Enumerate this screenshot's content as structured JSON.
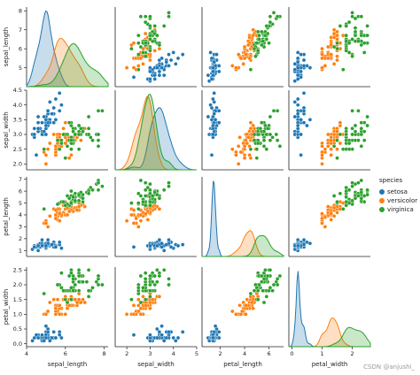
{
  "chart_data": {
    "type": "scatter",
    "variables": [
      "sepal_length",
      "sepal_width",
      "petal_length",
      "petal_width"
    ],
    "diagonal": "kde",
    "species": [
      {
        "name": "setosa",
        "color": "#1f77b4"
      },
      {
        "name": "versicolor",
        "color": "#ff7f0e"
      },
      {
        "name": "virginica",
        "color": "#2ca02c"
      }
    ],
    "legend": {
      "title": "species",
      "position": "right"
    },
    "axes": {
      "sepal_length": {
        "label": "sepal_length",
        "lim": [
          4.0,
          8.2
        ],
        "ticks": [
          4,
          6,
          8
        ]
      },
      "sepal_width": {
        "label": "sepal_width",
        "lim": [
          1.8,
          4.5
        ],
        "ticks": [
          2.0,
          2.5,
          3.0,
          3.5,
          4.0,
          4.5
        ],
        "xticks": [
          2,
          3,
          4,
          5
        ],
        "xlim": [
          1.5,
          5.0
        ]
      },
      "petal_length": {
        "label": "petal_length",
        "lim": [
          0.5,
          7.2
        ],
        "ticks": [
          1,
          2,
          3,
          4,
          5,
          6,
          7
        ],
        "xticks": [
          2,
          4,
          6
        ]
      },
      "petal_width": {
        "label": "petal_width",
        "lim": [
          -0.1,
          2.6
        ],
        "ticks": [
          0.0,
          0.5,
          1.0,
          1.5,
          2.0,
          2.5
        ],
        "xticks": [
          0,
          1,
          2
        ]
      }
    },
    "y_tick_labels": {
      "sepal_length": [
        "5",
        "6",
        "7",
        "8"
      ],
      "sepal_width": [
        "2.0",
        "2.5",
        "3.0",
        "3.5",
        "4.0",
        "4.5"
      ],
      "petal_length": [
        "1",
        "2",
        "3",
        "4",
        "5",
        "6",
        "7"
      ],
      "petal_width": [
        "0.0",
        "0.5",
        "1.0",
        "1.5",
        "2.0",
        "2.5"
      ]
    },
    "points": {
      "setosa": [
        [
          5.1,
          3.5,
          1.4,
          0.2
        ],
        [
          4.9,
          3.0,
          1.4,
          0.2
        ],
        [
          4.7,
          3.2,
          1.3,
          0.2
        ],
        [
          4.6,
          3.1,
          1.5,
          0.2
        ],
        [
          5.0,
          3.6,
          1.4,
          0.2
        ],
        [
          5.4,
          3.9,
          1.7,
          0.4
        ],
        [
          4.6,
          3.4,
          1.4,
          0.3
        ],
        [
          5.0,
          3.4,
          1.5,
          0.2
        ],
        [
          4.4,
          2.9,
          1.4,
          0.2
        ],
        [
          4.9,
          3.1,
          1.5,
          0.1
        ],
        [
          5.4,
          3.7,
          1.5,
          0.2
        ],
        [
          4.8,
          3.4,
          1.6,
          0.2
        ],
        [
          4.8,
          3.0,
          1.4,
          0.1
        ],
        [
          4.3,
          3.0,
          1.1,
          0.1
        ],
        [
          5.8,
          4.0,
          1.2,
          0.2
        ],
        [
          5.7,
          4.4,
          1.5,
          0.4
        ],
        [
          5.4,
          3.9,
          1.3,
          0.4
        ],
        [
          5.1,
          3.5,
          1.4,
          0.3
        ],
        [
          5.7,
          3.8,
          1.7,
          0.3
        ],
        [
          5.1,
          3.8,
          1.5,
          0.3
        ],
        [
          5.4,
          3.4,
          1.7,
          0.2
        ],
        [
          5.1,
          3.7,
          1.5,
          0.4
        ],
        [
          4.6,
          3.6,
          1.0,
          0.2
        ],
        [
          5.1,
          3.3,
          1.7,
          0.5
        ],
        [
          4.8,
          3.4,
          1.9,
          0.2
        ],
        [
          5.0,
          3.0,
          1.6,
          0.2
        ],
        [
          5.0,
          3.4,
          1.6,
          0.4
        ],
        [
          5.2,
          3.5,
          1.5,
          0.2
        ],
        [
          5.2,
          3.4,
          1.4,
          0.2
        ],
        [
          4.7,
          3.2,
          1.6,
          0.2
        ],
        [
          4.8,
          3.1,
          1.6,
          0.2
        ],
        [
          5.4,
          3.4,
          1.5,
          0.4
        ],
        [
          5.2,
          4.1,
          1.5,
          0.1
        ],
        [
          5.5,
          4.2,
          1.4,
          0.2
        ],
        [
          4.9,
          3.1,
          1.5,
          0.2
        ],
        [
          5.0,
          3.2,
          1.2,
          0.2
        ],
        [
          5.5,
          3.5,
          1.3,
          0.2
        ],
        [
          4.9,
          3.6,
          1.4,
          0.1
        ],
        [
          4.4,
          3.0,
          1.3,
          0.2
        ],
        [
          5.1,
          3.4,
          1.5,
          0.2
        ],
        [
          5.0,
          3.5,
          1.3,
          0.3
        ],
        [
          4.5,
          2.3,
          1.3,
          0.3
        ],
        [
          4.4,
          3.2,
          1.3,
          0.2
        ],
        [
          5.0,
          3.5,
          1.6,
          0.6
        ],
        [
          5.1,
          3.8,
          1.9,
          0.4
        ],
        [
          4.8,
          3.0,
          1.4,
          0.3
        ],
        [
          5.1,
          3.8,
          1.6,
          0.2
        ],
        [
          4.6,
          3.2,
          1.4,
          0.2
        ],
        [
          5.3,
          3.7,
          1.5,
          0.2
        ],
        [
          5.0,
          3.3,
          1.4,
          0.2
        ]
      ],
      "versicolor": [
        [
          7.0,
          3.2,
          4.7,
          1.4
        ],
        [
          6.4,
          3.2,
          4.5,
          1.5
        ],
        [
          6.9,
          3.1,
          4.9,
          1.5
        ],
        [
          5.5,
          2.3,
          4.0,
          1.3
        ],
        [
          6.5,
          2.8,
          4.6,
          1.5
        ],
        [
          5.7,
          2.8,
          4.5,
          1.3
        ],
        [
          6.3,
          3.3,
          4.7,
          1.6
        ],
        [
          4.9,
          2.4,
          3.3,
          1.0
        ],
        [
          6.6,
          2.9,
          4.6,
          1.3
        ],
        [
          5.2,
          2.7,
          3.9,
          1.4
        ],
        [
          5.0,
          2.0,
          3.5,
          1.0
        ],
        [
          5.9,
          3.0,
          4.2,
          1.5
        ],
        [
          6.0,
          2.2,
          4.0,
          1.0
        ],
        [
          6.1,
          2.9,
          4.7,
          1.4
        ],
        [
          5.6,
          2.9,
          3.6,
          1.3
        ],
        [
          6.7,
          3.1,
          4.4,
          1.4
        ],
        [
          5.6,
          3.0,
          4.5,
          1.5
        ],
        [
          5.8,
          2.7,
          4.1,
          1.0
        ],
        [
          6.2,
          2.2,
          4.5,
          1.5
        ],
        [
          5.6,
          2.5,
          3.9,
          1.1
        ],
        [
          5.9,
          3.2,
          4.8,
          1.8
        ],
        [
          6.1,
          2.8,
          4.0,
          1.3
        ],
        [
          6.3,
          2.5,
          4.9,
          1.5
        ],
        [
          6.1,
          2.8,
          4.7,
          1.2
        ],
        [
          6.4,
          2.9,
          4.3,
          1.3
        ],
        [
          6.6,
          3.0,
          4.4,
          1.4
        ],
        [
          6.8,
          2.8,
          4.8,
          1.4
        ],
        [
          6.7,
          3.0,
          5.0,
          1.7
        ],
        [
          6.0,
          2.9,
          4.5,
          1.5
        ],
        [
          5.7,
          2.6,
          3.5,
          1.0
        ],
        [
          5.5,
          2.4,
          3.8,
          1.1
        ],
        [
          5.5,
          2.4,
          3.7,
          1.0
        ],
        [
          5.8,
          2.7,
          3.9,
          1.2
        ],
        [
          6.0,
          2.7,
          5.1,
          1.6
        ],
        [
          5.4,
          3.0,
          4.5,
          1.5
        ],
        [
          6.0,
          3.4,
          4.5,
          1.6
        ],
        [
          6.7,
          3.1,
          4.7,
          1.5
        ],
        [
          6.3,
          2.3,
          4.4,
          1.3
        ],
        [
          5.6,
          3.0,
          4.1,
          1.3
        ],
        [
          5.5,
          2.5,
          4.0,
          1.3
        ],
        [
          5.5,
          2.6,
          4.4,
          1.2
        ],
        [
          6.1,
          3.0,
          4.6,
          1.4
        ],
        [
          5.8,
          2.6,
          4.0,
          1.2
        ],
        [
          5.0,
          2.3,
          3.3,
          1.0
        ],
        [
          5.6,
          2.7,
          4.2,
          1.3
        ],
        [
          5.7,
          3.0,
          4.2,
          1.2
        ],
        [
          5.7,
          2.9,
          4.2,
          1.3
        ],
        [
          6.2,
          2.9,
          4.3,
          1.3
        ],
        [
          5.1,
          2.5,
          3.0,
          1.1
        ],
        [
          5.7,
          2.8,
          4.1,
          1.3
        ]
      ],
      "virginica": [
        [
          6.3,
          3.3,
          6.0,
          2.5
        ],
        [
          5.8,
          2.7,
          5.1,
          1.9
        ],
        [
          7.1,
          3.0,
          5.9,
          2.1
        ],
        [
          6.3,
          2.9,
          5.6,
          1.8
        ],
        [
          6.5,
          3.0,
          5.8,
          2.2
        ],
        [
          7.6,
          3.0,
          6.6,
          2.1
        ],
        [
          4.9,
          2.5,
          4.5,
          1.7
        ],
        [
          7.3,
          2.9,
          6.3,
          1.8
        ],
        [
          6.7,
          2.5,
          5.8,
          1.8
        ],
        [
          7.2,
          3.6,
          6.1,
          2.5
        ],
        [
          6.5,
          3.2,
          5.1,
          2.0
        ],
        [
          6.4,
          2.7,
          5.3,
          1.9
        ],
        [
          6.8,
          3.0,
          5.5,
          2.1
        ],
        [
          5.7,
          2.5,
          5.0,
          2.0
        ],
        [
          5.8,
          2.8,
          5.1,
          2.4
        ],
        [
          6.4,
          3.2,
          5.3,
          2.3
        ],
        [
          6.5,
          3.0,
          5.5,
          1.8
        ],
        [
          7.7,
          3.8,
          6.7,
          2.2
        ],
        [
          7.7,
          2.6,
          6.9,
          2.3
        ],
        [
          6.0,
          2.2,
          5.0,
          1.5
        ],
        [
          6.9,
          3.2,
          5.7,
          2.3
        ],
        [
          5.6,
          2.8,
          4.9,
          2.0
        ],
        [
          7.7,
          2.8,
          6.7,
          2.0
        ],
        [
          6.3,
          2.7,
          4.9,
          1.8
        ],
        [
          6.7,
          3.3,
          5.7,
          2.1
        ],
        [
          7.2,
          3.2,
          6.0,
          1.8
        ],
        [
          6.2,
          2.8,
          4.8,
          1.8
        ],
        [
          6.1,
          3.0,
          4.9,
          1.8
        ],
        [
          6.4,
          2.8,
          5.6,
          2.1
        ],
        [
          7.2,
          3.0,
          5.8,
          1.6
        ],
        [
          7.4,
          2.8,
          6.1,
          1.9
        ],
        [
          7.9,
          3.8,
          6.4,
          2.0
        ],
        [
          6.4,
          2.8,
          5.6,
          2.2
        ],
        [
          6.3,
          2.8,
          5.1,
          1.5
        ],
        [
          6.1,
          2.6,
          5.6,
          1.4
        ],
        [
          7.7,
          3.0,
          6.1,
          2.3
        ],
        [
          6.3,
          3.4,
          5.6,
          2.4
        ],
        [
          6.4,
          3.1,
          5.5,
          1.8
        ],
        [
          6.0,
          3.0,
          4.8,
          1.8
        ],
        [
          6.9,
          3.1,
          5.4,
          2.1
        ],
        [
          6.7,
          3.1,
          5.6,
          2.4
        ],
        [
          6.9,
          3.1,
          5.1,
          2.3
        ],
        [
          5.8,
          2.7,
          5.1,
          1.9
        ],
        [
          6.8,
          3.2,
          5.9,
          2.3
        ],
        [
          6.7,
          3.3,
          5.7,
          2.5
        ],
        [
          6.7,
          3.0,
          5.2,
          2.3
        ],
        [
          6.3,
          2.5,
          5.0,
          1.9
        ],
        [
          6.5,
          3.0,
          5.2,
          2.0
        ],
        [
          6.2,
          3.4,
          5.4,
          2.3
        ],
        [
          5.9,
          3.0,
          5.1,
          1.8
        ]
      ]
    }
  },
  "watermark": "CSDN @anjushi_"
}
